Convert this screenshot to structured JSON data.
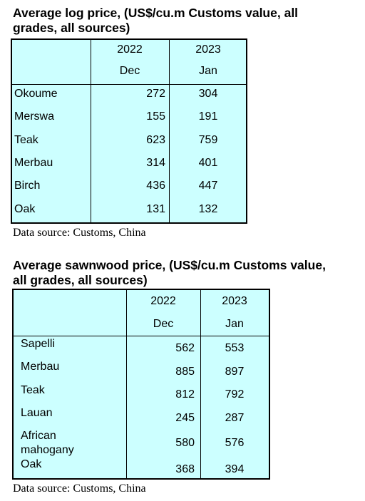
{
  "table1": {
    "title": "Average log price, (US$/cu.m Customs value, all\ngrades, all sources)",
    "header": {
      "year1": "2022",
      "year2": "2023",
      "month1": "Dec",
      "month2": "Jan"
    },
    "rows": [
      {
        "name": "Okoume",
        "v1": "272",
        "v2": "304"
      },
      {
        "name": "Merswa",
        "v1": "155",
        "v2": "191"
      },
      {
        "name": "Teak",
        "v1": "623",
        "v2": "759"
      },
      {
        "name": "Merbau",
        "v1": "314",
        "v2": "401"
      },
      {
        "name": "Birch",
        "v1": "436",
        "v2": "447"
      },
      {
        "name": "Oak",
        "v1": "131",
        "v2": "132"
      }
    ],
    "source": "Data source: Customs, China"
  },
  "table2": {
    "title": "Average sawnwood price, (US$/cu.m Customs value,\nall grades, all sources)",
    "header": {
      "year1": "2022",
      "year2": "2023",
      "month1": "Dec",
      "month2": "Jan"
    },
    "rows": [
      {
        "name": "Sapelli",
        "v1": "562",
        "v2": "553"
      },
      {
        "name": "Merbau",
        "v1": "885",
        "v2": "897"
      },
      {
        "name": "Teak",
        "v1": "812",
        "v2": "792"
      },
      {
        "name": "Lauan",
        "v1": "245",
        "v2": "287"
      },
      {
        "name": "African\nmahogany",
        "v1": "580",
        "v2": "576"
      },
      {
        "name": "Oak",
        "v1": "368",
        "v2": "394"
      }
    ],
    "source": "Data source: Customs, China"
  }
}
